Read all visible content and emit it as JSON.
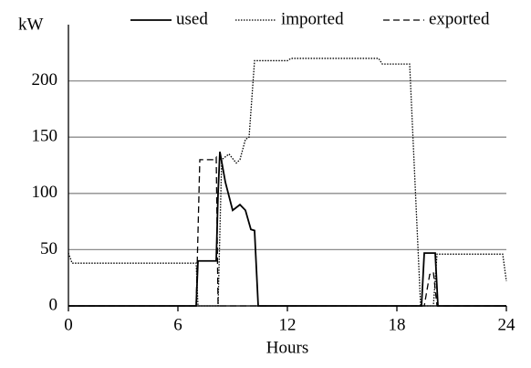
{
  "chart_data": {
    "type": "line",
    "y_label": "kW",
    "x_label": "Hours",
    "xlim": [
      0,
      24
    ],
    "xticks": [
      0,
      6,
      12,
      18,
      24
    ],
    "ylim": [
      0,
      250
    ],
    "yticks": [
      0,
      50,
      100,
      150,
      200
    ],
    "grid": true,
    "legend": "top",
    "series": [
      {
        "name": "used",
        "color": "#000000",
        "style": "solid",
        "x": [
          0,
          7.0,
          7.1,
          8.1,
          8.2,
          8.3,
          8.6,
          9.0,
          9.4,
          9.7,
          10.0,
          10.2,
          10.4,
          19.35,
          19.5,
          20.1,
          20.25,
          24
        ],
        "values": [
          0,
          0,
          40,
          40,
          100,
          137,
          110,
          85,
          90,
          85,
          68,
          67,
          0,
          0,
          47,
          47,
          0,
          0
        ]
      },
      {
        "name": "imported",
        "color": "#000000",
        "style": "dotted",
        "x": [
          0,
          0.2,
          7.0,
          7.1,
          8.2,
          8.4,
          8.8,
          9.2,
          9.4,
          9.7,
          9.9,
          10.2,
          12.0,
          12.2,
          17.0,
          17.2,
          18.7,
          19.3,
          20.0,
          20.2,
          23.8,
          24
        ],
        "values": [
          47,
          38,
          38,
          0,
          0,
          130,
          135,
          127,
          130,
          148,
          150,
          218,
          218,
          220,
          220,
          215,
          215,
          0,
          0,
          46,
          46,
          22
        ]
      },
      {
        "name": "exported",
        "color": "#000000",
        "style": "dashed",
        "x": [
          0,
          7.0,
          7.2,
          8.0,
          8.1,
          8.2,
          19.5,
          19.8,
          20.0,
          20.2,
          24
        ],
        "values": [
          0,
          0,
          130,
          130,
          132,
          0,
          0,
          28,
          30,
          0,
          0
        ]
      }
    ]
  }
}
